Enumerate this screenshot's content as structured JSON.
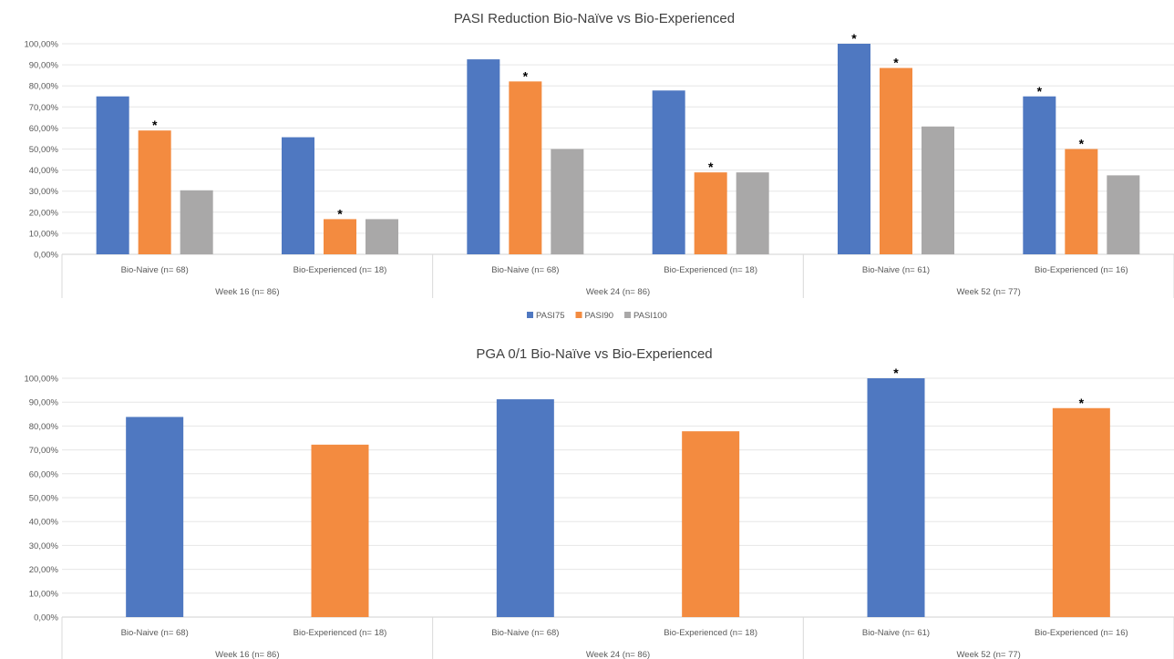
{
  "chart_data": [
    {
      "type": "bar",
      "title": "PASI Reduction Bio-Naïve vs Bio-Experienced",
      "groups": [
        {
          "label": "Week 16 (n= 86)",
          "categories": [
            "Bio-Naive (n= 68)",
            "Bio-Experienced (n= 18)"
          ]
        },
        {
          "label": "Week 24 (n= 86)",
          "categories": [
            "Bio-Naive (n= 68)",
            "Bio-Experienced (n= 18)"
          ]
        },
        {
          "label": "Week 52 (n= 77)",
          "categories": [
            "Bio-Naive (n= 61)",
            "Bio-Experienced (n= 16)"
          ]
        }
      ],
      "categories": [
        "Bio-Naive (n= 68)",
        "Bio-Experienced (n= 18)",
        "Bio-Naive (n= 68)",
        "Bio-Experienced (n= 18)",
        "Bio-Naive (n= 61)",
        "Bio-Experienced (n= 16)"
      ],
      "series": [
        {
          "name": "PASI75",
          "color": "#4f78c1",
          "values": [
            75.0,
            55.6,
            92.6,
            77.8,
            100.0,
            75.0
          ],
          "significant": [
            false,
            false,
            false,
            false,
            true,
            true
          ]
        },
        {
          "name": "PASI90",
          "color": "#f38b40",
          "values": [
            58.8,
            16.7,
            82.1,
            38.9,
            88.5,
            50.0
          ],
          "significant": [
            true,
            true,
            true,
            true,
            true,
            true
          ]
        },
        {
          "name": "PASI100",
          "color": "#a9a8a8",
          "values": [
            30.4,
            16.7,
            50.0,
            38.9,
            60.7,
            37.5
          ],
          "significant": [
            false,
            false,
            false,
            false,
            false,
            false
          ]
        }
      ],
      "ylim": [
        0,
        100
      ],
      "yticks": [
        "0,00%",
        "10,00%",
        "20,00%",
        "30,00%",
        "40,00%",
        "50,00%",
        "60,00%",
        "70,00%",
        "80,00%",
        "90,00%",
        "100,00%"
      ],
      "significance_marker": "*",
      "legend": "bottom",
      "grid": true
    },
    {
      "type": "bar",
      "title": "PGA 0/1 Bio-Naïve vs Bio-Experienced",
      "groups": [
        {
          "label": "Week 16 (n= 86)",
          "categories": [
            "Bio-Naive (n= 68)",
            "Bio-Experienced (n= 18)"
          ]
        },
        {
          "label": "Week 24 (n= 86)",
          "categories": [
            "Bio-Naive (n= 68)",
            "Bio-Experienced (n= 18)"
          ]
        },
        {
          "label": "Week 52 (n= 77)",
          "categories": [
            "Bio-Naive (n= 61)",
            "Bio-Experienced (n= 16)"
          ]
        }
      ],
      "categories": [
        "Bio-Naive (n= 68)",
        "Bio-Experienced (n= 18)",
        "Bio-Naive (n= 68)",
        "Bio-Experienced (n= 18)",
        "Bio-Naive (n= 61)",
        "Bio-Experienced (n= 16)"
      ],
      "bars": [
        {
          "value": 83.8,
          "color": "#4f78c1",
          "significant": false
        },
        {
          "value": 72.2,
          "color": "#f38b40",
          "significant": false
        },
        {
          "value": 91.2,
          "color": "#4f78c1",
          "significant": false
        },
        {
          "value": 77.8,
          "color": "#f38b40",
          "significant": false
        },
        {
          "value": 100.0,
          "color": "#4f78c1",
          "significant": true
        },
        {
          "value": 87.5,
          "color": "#f38b40",
          "significant": true
        }
      ],
      "ylim": [
        0,
        100
      ],
      "yticks": [
        "0,00%",
        "10,00%",
        "20,00%",
        "30,00%",
        "40,00%",
        "50,00%",
        "60,00%",
        "70,00%",
        "80,00%",
        "90,00%",
        "100,00%"
      ],
      "significance_marker": "*",
      "grid": true
    }
  ]
}
